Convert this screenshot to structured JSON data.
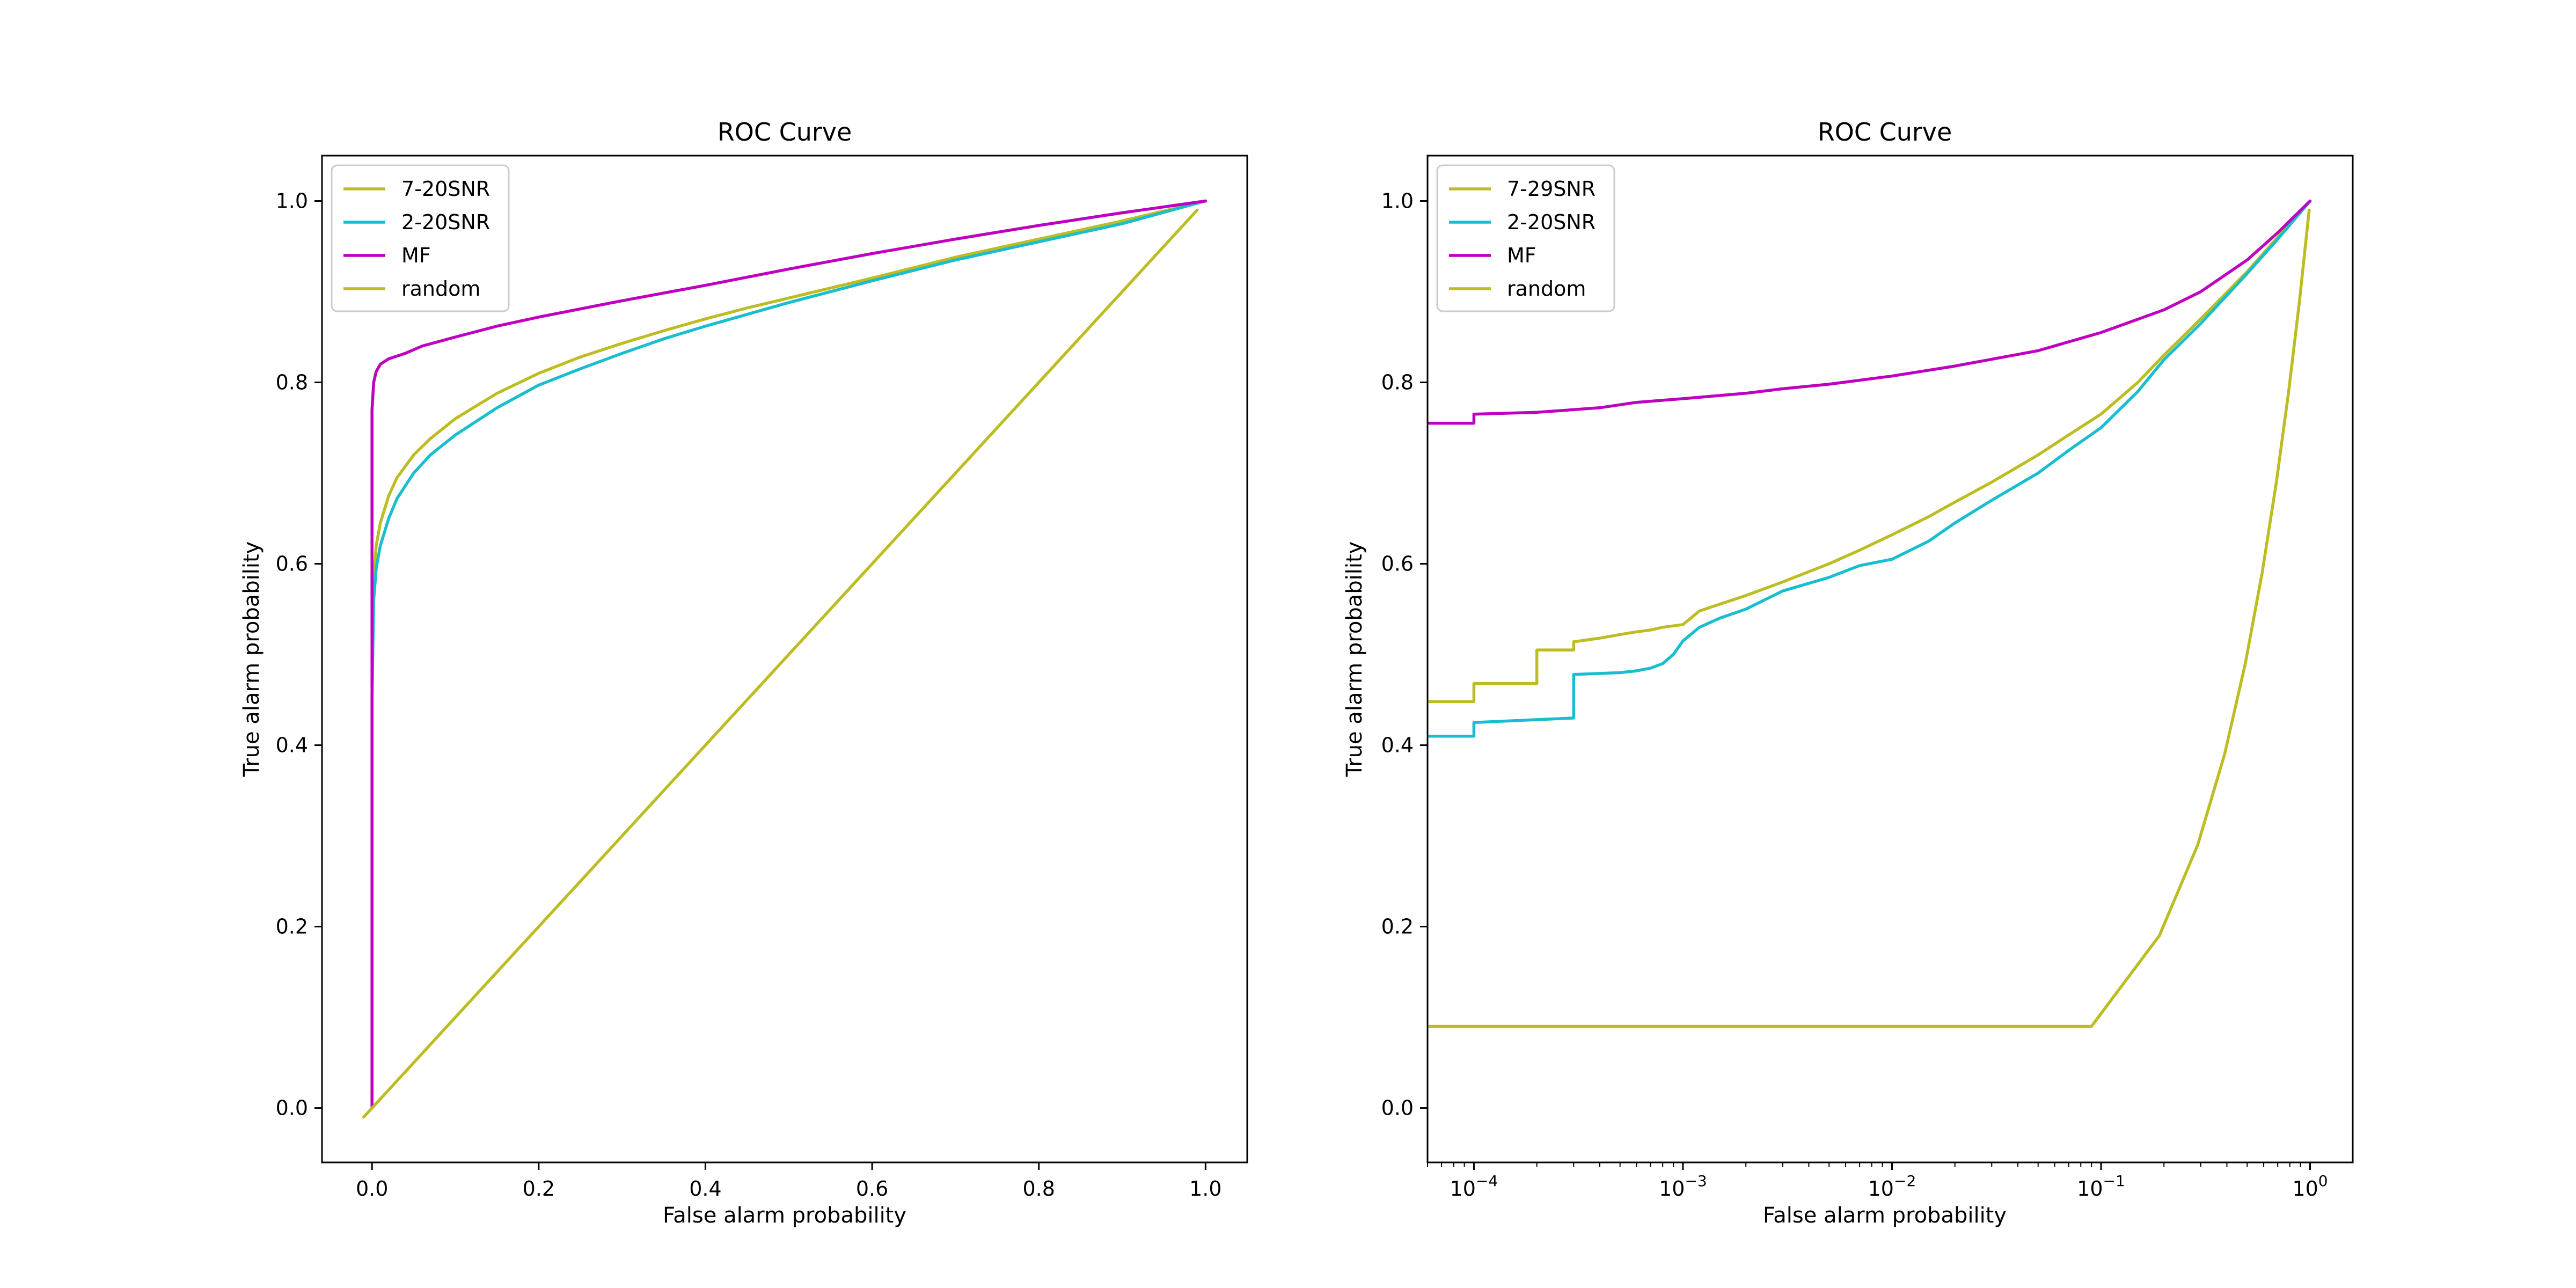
{
  "chart_data": [
    {
      "type": "line",
      "title": "ROC Curve",
      "xlabel": "False alarm probability",
      "ylabel": "True alarm probability",
      "xscale": "linear",
      "xlim": [
        -0.06,
        1.05
      ],
      "ylim": [
        -0.06,
        1.05
      ],
      "xticks": [
        0.0,
        0.2,
        0.4,
        0.6,
        0.8,
        1.0
      ],
      "xtick_labels": [
        "0.0",
        "0.2",
        "0.4",
        "0.6",
        "0.8",
        "1.0"
      ],
      "yticks": [
        0.0,
        0.2,
        0.4,
        0.6,
        0.8,
        1.0
      ],
      "ytick_labels": [
        "0.0",
        "0.2",
        "0.4",
        "0.6",
        "0.8",
        "1.0"
      ],
      "grid": false,
      "legend": "top-left",
      "series": [
        {
          "name": "7-20SNR",
          "color": "#bcbd22",
          "x": [
            0.0,
            0.002,
            0.005,
            0.01,
            0.02,
            0.03,
            0.05,
            0.07,
            0.1,
            0.15,
            0.2,
            0.25,
            0.3,
            0.35,
            0.4,
            0.45,
            0.5,
            0.6,
            0.7,
            0.8,
            0.9,
            1.0
          ],
          "y": [
            0.5,
            0.58,
            0.62,
            0.645,
            0.675,
            0.695,
            0.72,
            0.738,
            0.76,
            0.788,
            0.81,
            0.828,
            0.843,
            0.857,
            0.87,
            0.882,
            0.893,
            0.915,
            0.938,
            0.958,
            0.978,
            1.0
          ]
        },
        {
          "name": "2-20SNR",
          "color": "#17becf",
          "x": [
            0.0,
            0.002,
            0.005,
            0.01,
            0.02,
            0.03,
            0.05,
            0.07,
            0.1,
            0.15,
            0.2,
            0.25,
            0.3,
            0.35,
            0.4,
            0.45,
            0.5,
            0.6,
            0.7,
            0.8,
            0.9,
            1.0
          ],
          "y": [
            0.45,
            0.56,
            0.595,
            0.62,
            0.65,
            0.672,
            0.7,
            0.72,
            0.742,
            0.772,
            0.797,
            0.815,
            0.832,
            0.848,
            0.862,
            0.875,
            0.888,
            0.912,
            0.935,
            0.955,
            0.975,
            1.0
          ]
        },
        {
          "name": "MF",
          "color": "#c000c0",
          "x": [
            0.0,
            0.0,
            0.002,
            0.005,
            0.01,
            0.02,
            0.04,
            0.06,
            0.08,
            0.1,
            0.15,
            0.2,
            0.3,
            0.4,
            0.5,
            0.6,
            0.7,
            0.8,
            0.9,
            1.0
          ],
          "y": [
            0.0,
            0.77,
            0.8,
            0.812,
            0.82,
            0.826,
            0.832,
            0.84,
            0.845,
            0.85,
            0.862,
            0.872,
            0.89,
            0.907,
            0.925,
            0.942,
            0.958,
            0.973,
            0.987,
            1.0
          ]
        },
        {
          "name": "random",
          "color": "#bcbd22",
          "x": [
            -0.01,
            0.99
          ],
          "y": [
            -0.01,
            0.99
          ]
        }
      ]
    },
    {
      "type": "line",
      "title": "ROC Curve",
      "xlabel": "False alarm probability",
      "ylabel": "True alarm probability",
      "xscale": "log",
      "xlim": [
        6e-05,
        1.6
      ],
      "ylim": [
        -0.06,
        1.05
      ],
      "xticks": [
        0.0001,
        0.001,
        0.01,
        0.1,
        1
      ],
      "xtick_labels": [
        {
          "base": "10",
          "exp": "−4"
        },
        {
          "base": "10",
          "exp": "−3"
        },
        {
          "base": "10",
          "exp": "−2"
        },
        {
          "base": "10",
          "exp": "−1"
        },
        {
          "base": "10",
          "exp": "0"
        }
      ],
      "yticks": [
        0.0,
        0.2,
        0.4,
        0.6,
        0.8,
        1.0
      ],
      "ytick_labels": [
        "0.0",
        "0.2",
        "0.4",
        "0.6",
        "0.8",
        "1.0"
      ],
      "grid": false,
      "legend": "top-left",
      "series": [
        {
          "name": "7-29SNR",
          "color": "#bcbd22",
          "x": [
            6e-05,
            0.0001,
            0.0001,
            0.0002,
            0.0002,
            0.0003,
            0.0003,
            0.0004,
            0.0005,
            0.0006,
            0.0007,
            0.0008,
            0.001,
            0.0012,
            0.002,
            0.003,
            0.005,
            0.007,
            0.01,
            0.015,
            0.02,
            0.03,
            0.05,
            0.07,
            0.1,
            0.15,
            0.2,
            0.3,
            0.5,
            0.7,
            1.0
          ],
          "y": [
            0.448,
            0.448,
            0.468,
            0.468,
            0.505,
            0.505,
            0.514,
            0.518,
            0.522,
            0.525,
            0.527,
            0.53,
            0.533,
            0.548,
            0.565,
            0.58,
            0.6,
            0.615,
            0.632,
            0.652,
            0.668,
            0.69,
            0.72,
            0.742,
            0.765,
            0.8,
            0.83,
            0.87,
            0.922,
            0.96,
            1.0
          ]
        },
        {
          "name": "2-20SNR",
          "color": "#17becf",
          "x": [
            6e-05,
            0.0001,
            0.0001,
            0.0003,
            0.0003,
            0.0005,
            0.0006,
            0.0007,
            0.0008,
            0.0009,
            0.001,
            0.0012,
            0.0015,
            0.002,
            0.003,
            0.005,
            0.007,
            0.01,
            0.015,
            0.02,
            0.03,
            0.05,
            0.07,
            0.1,
            0.15,
            0.2,
            0.3,
            0.5,
            0.7,
            1.0
          ],
          "y": [
            0.41,
            0.41,
            0.425,
            0.43,
            0.478,
            0.48,
            0.482,
            0.485,
            0.49,
            0.5,
            0.515,
            0.53,
            0.54,
            0.55,
            0.57,
            0.585,
            0.598,
            0.605,
            0.625,
            0.645,
            0.67,
            0.7,
            0.725,
            0.75,
            0.79,
            0.825,
            0.865,
            0.92,
            0.958,
            1.0
          ]
        },
        {
          "name": "MF",
          "color": "#c000c0",
          "x": [
            6e-05,
            0.0001,
            0.0001,
            0.0002,
            0.0004,
            0.0006,
            0.001,
            0.002,
            0.003,
            0.005,
            0.01,
            0.02,
            0.05,
            0.1,
            0.2,
            0.3,
            0.5,
            0.7,
            1.0
          ],
          "y": [
            0.755,
            0.755,
            0.765,
            0.767,
            0.772,
            0.778,
            0.782,
            0.788,
            0.793,
            0.798,
            0.807,
            0.818,
            0.835,
            0.855,
            0.88,
            0.9,
            0.935,
            0.965,
            1.0
          ]
        },
        {
          "name": "random",
          "color": "#bcbd22",
          "x": [
            6e-05,
            0.09,
            0.19,
            0.29,
            0.39,
            0.49,
            0.59,
            0.69,
            0.79,
            0.89,
            0.99
          ],
          "y": [
            0.09,
            0.09,
            0.19,
            0.29,
            0.39,
            0.49,
            0.59,
            0.69,
            0.79,
            0.89,
            0.99
          ]
        }
      ]
    }
  ]
}
